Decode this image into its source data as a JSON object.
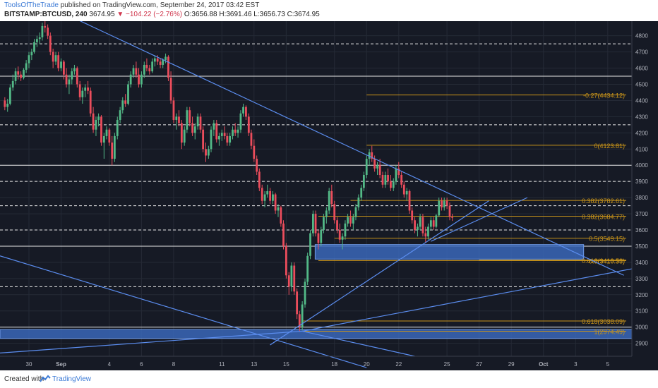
{
  "header": {
    "author": "ToolsOfTheTrade",
    "published": "published on TradingView.com, September 24, 2017 03:42 EST",
    "symbol": "BITSTAMP:BTCUSD, 240",
    "last": "3674.95",
    "change": "−104.22 (−2.76%)",
    "open": "O:3656.88",
    "high": "H:3691.46",
    "low": "L:3656.73",
    "close": "C:3674.95"
  },
  "footer": {
    "created_with": "Created with",
    "brand": "TradingView"
  },
  "colors": {
    "background": "#161a25",
    "grid": "#252a36",
    "up": "#53b987",
    "down": "#eb4d5c",
    "trendline": "#5b8def",
    "fib": "#c9941a",
    "zone": "#3a67b8",
    "axis_text": "#b2b5be",
    "white_line": "#e8e8e8"
  },
  "chart_data": {
    "type": "candlestick",
    "ylim": [
      2820,
      4890
    ],
    "x_range_days": [
      -2.8,
      36.5
    ],
    "x_ticks": [
      {
        "label": "30",
        "day": -1
      },
      {
        "label": "Sep",
        "day": 1
      },
      {
        "label": "4",
        "day": 4
      },
      {
        "label": "6",
        "day": 6
      },
      {
        "label": "8",
        "day": 8
      },
      {
        "label": "11",
        "day": 11
      },
      {
        "label": "13",
        "day": 13
      },
      {
        "label": "15",
        "day": 15
      },
      {
        "label": "18",
        "day": 18
      },
      {
        "label": "20",
        "day": 20
      },
      {
        "label": "22",
        "day": 22
      },
      {
        "label": "25",
        "day": 25
      },
      {
        "label": "27",
        "day": 27
      },
      {
        "label": "29",
        "day": 29
      },
      {
        "label": "Oct",
        "day": 31
      },
      {
        "label": "3",
        "day": 33
      },
      {
        "label": "5",
        "day": 35
      }
    ],
    "y_ticks": [
      2900,
      3000,
      3100,
      3200,
      3300,
      3400,
      3500,
      3600,
      3700,
      3800,
      3900,
      4000,
      4100,
      4200,
      4300,
      4400,
      4500,
      4600,
      4700,
      4800
    ],
    "candles": [
      [
        -2.5,
        4400,
        4420,
        4340,
        4360
      ],
      [
        -2.33,
        4360,
        4410,
        4330,
        4380
      ],
      [
        -2.17,
        4380,
        4500,
        4370,
        4480
      ],
      [
        -2,
        4480,
        4560,
        4460,
        4520
      ],
      [
        -1.83,
        4520,
        4600,
        4500,
        4580
      ],
      [
        -1.67,
        4580,
        4610,
        4530,
        4560
      ],
      [
        -1.5,
        4560,
        4580,
        4520,
        4540
      ],
      [
        -1.33,
        4540,
        4600,
        4530,
        4590
      ],
      [
        -1.17,
        4590,
        4650,
        4570,
        4630
      ],
      [
        -1,
        4630,
        4700,
        4600,
        4680
      ],
      [
        -0.83,
        4680,
        4720,
        4650,
        4700
      ],
      [
        -0.67,
        4700,
        4780,
        4690,
        4760
      ],
      [
        -0.5,
        4760,
        4800,
        4730,
        4780
      ],
      [
        -0.33,
        4780,
        4820,
        4750,
        4790
      ],
      [
        -0.17,
        4790,
        4880,
        4770,
        4860
      ],
      [
        0,
        4860,
        4890,
        4820,
        4850
      ],
      [
        0.17,
        4850,
        4870,
        4780,
        4800
      ],
      [
        0.33,
        4800,
        4820,
        4680,
        4700
      ],
      [
        0.5,
        4700,
        4720,
        4600,
        4640
      ],
      [
        0.67,
        4640,
        4700,
        4620,
        4680
      ],
      [
        0.83,
        4680,
        4700,
        4580,
        4600
      ],
      [
        1,
        4600,
        4660,
        4580,
        4640
      ],
      [
        1.17,
        4640,
        4650,
        4530,
        4560
      ],
      [
        1.33,
        4560,
        4600,
        4480,
        4500
      ],
      [
        1.5,
        4500,
        4560,
        4440,
        4530
      ],
      [
        1.67,
        4530,
        4600,
        4500,
        4580
      ],
      [
        1.83,
        4580,
        4620,
        4560,
        4600
      ],
      [
        2,
        4600,
        4610,
        4480,
        4500
      ],
      [
        2.17,
        4500,
        4520,
        4400,
        4420
      ],
      [
        2.33,
        4420,
        4480,
        4380,
        4460
      ],
      [
        2.5,
        4460,
        4500,
        4420,
        4480
      ],
      [
        2.67,
        4480,
        4520,
        4440,
        4460
      ],
      [
        2.83,
        4460,
        4480,
        4300,
        4320
      ],
      [
        3,
        4320,
        4360,
        4200,
        4220
      ],
      [
        3.17,
        4220,
        4300,
        4180,
        4280
      ],
      [
        3.33,
        4280,
        4320,
        4240,
        4300
      ],
      [
        3.5,
        4300,
        4310,
        4120,
        4140
      ],
      [
        3.67,
        4140,
        4200,
        4040,
        4180
      ],
      [
        3.83,
        4180,
        4240,
        4160,
        4220
      ],
      [
        4,
        4220,
        4230,
        4120,
        4140
      ],
      [
        4.17,
        4140,
        4180,
        4000,
        4040
      ],
      [
        4.33,
        4040,
        4200,
        4020,
        4180
      ],
      [
        4.5,
        4180,
        4300,
        4160,
        4280
      ],
      [
        4.67,
        4280,
        4360,
        4260,
        4340
      ],
      [
        4.83,
        4340,
        4420,
        4320,
        4400
      ],
      [
        5,
        4400,
        4440,
        4360,
        4380
      ],
      [
        5.17,
        4380,
        4520,
        4370,
        4500
      ],
      [
        5.33,
        4500,
        4580,
        4480,
        4560
      ],
      [
        5.5,
        4560,
        4620,
        4540,
        4600
      ],
      [
        5.67,
        4600,
        4640,
        4540,
        4560
      ],
      [
        5.83,
        4560,
        4600,
        4480,
        4500
      ],
      [
        6,
        4500,
        4580,
        4480,
        4560
      ],
      [
        6.17,
        4560,
        4640,
        4540,
        4620
      ],
      [
        6.33,
        4620,
        4660,
        4580,
        4600
      ],
      [
        6.5,
        4600,
        4620,
        4560,
        4580
      ],
      [
        6.67,
        4580,
        4660,
        4570,
        4640
      ],
      [
        6.83,
        4640,
        4680,
        4610,
        4660
      ],
      [
        7,
        4660,
        4680,
        4620,
        4640
      ],
      [
        7.17,
        4640,
        4660,
        4600,
        4620
      ],
      [
        7.33,
        4620,
        4660,
        4600,
        4650
      ],
      [
        7.5,
        4650,
        4690,
        4630,
        4670
      ],
      [
        7.67,
        4670,
        4680,
        4520,
        4540
      ],
      [
        7.83,
        4540,
        4580,
        4380,
        4400
      ],
      [
        8,
        4400,
        4420,
        4260,
        4280
      ],
      [
        8.17,
        4280,
        4320,
        4220,
        4300
      ],
      [
        8.33,
        4300,
        4340,
        4240,
        4260
      ],
      [
        8.5,
        4260,
        4280,
        4100,
        4140
      ],
      [
        8.67,
        4140,
        4240,
        4120,
        4220
      ],
      [
        8.83,
        4220,
        4360,
        4200,
        4340
      ],
      [
        9,
        4340,
        4360,
        4240,
        4260
      ],
      [
        9.17,
        4260,
        4300,
        4180,
        4200
      ],
      [
        9.33,
        4200,
        4260,
        4160,
        4240
      ],
      [
        9.5,
        4240,
        4320,
        4220,
        4300
      ],
      [
        9.67,
        4300,
        4320,
        4200,
        4220
      ],
      [
        9.83,
        4220,
        4240,
        4080,
        4100
      ],
      [
        10,
        4100,
        4140,
        4020,
        4060
      ],
      [
        10.17,
        4060,
        4120,
        4040,
        4100
      ],
      [
        10.33,
        4100,
        4240,
        4080,
        4220
      ],
      [
        10.5,
        4220,
        4280,
        4180,
        4260
      ],
      [
        10.67,
        4260,
        4280,
        4140,
        4160
      ],
      [
        10.83,
        4160,
        4200,
        4120,
        4180
      ],
      [
        11,
        4180,
        4220,
        4150,
        4200
      ],
      [
        11.17,
        4200,
        4240,
        4160,
        4180
      ],
      [
        11.33,
        4180,
        4200,
        4120,
        4140
      ],
      [
        11.5,
        4140,
        4200,
        4120,
        4180
      ],
      [
        11.67,
        4180,
        4240,
        4160,
        4220
      ],
      [
        11.83,
        4220,
        4260,
        4180,
        4200
      ],
      [
        12,
        4200,
        4240,
        4170,
        4220
      ],
      [
        12.17,
        4220,
        4340,
        4200,
        4320
      ],
      [
        12.33,
        4320,
        4380,
        4300,
        4360
      ],
      [
        12.5,
        4360,
        4370,
        4280,
        4300
      ],
      [
        12.67,
        4300,
        4320,
        4180,
        4200
      ],
      [
        12.83,
        4200,
        4220,
        4100,
        4120
      ],
      [
        13,
        4120,
        4160,
        4020,
        4040
      ],
      [
        13.17,
        4040,
        4060,
        3940,
        3960
      ],
      [
        13.33,
        3960,
        3980,
        3840,
        3860
      ],
      [
        13.5,
        3860,
        3880,
        3760,
        3780
      ],
      [
        13.67,
        3780,
        3840,
        3740,
        3820
      ],
      [
        13.83,
        3820,
        3880,
        3800,
        3840
      ],
      [
        14,
        3840,
        3860,
        3760,
        3780
      ],
      [
        14.17,
        3780,
        3840,
        3760,
        3820
      ],
      [
        14.33,
        3820,
        3830,
        3700,
        3720
      ],
      [
        14.5,
        3720,
        3760,
        3680,
        3740
      ],
      [
        14.67,
        3740,
        3750,
        3620,
        3640
      ],
      [
        14.83,
        3640,
        3660,
        3480,
        3500
      ],
      [
        15,
        3500,
        3520,
        3300,
        3320
      ],
      [
        15.17,
        3320,
        3340,
        3200,
        3250
      ],
      [
        15.33,
        3250,
        3400,
        3220,
        3380
      ],
      [
        15.5,
        3380,
        3400,
        3200,
        3220
      ],
      [
        15.67,
        3220,
        3240,
        3050,
        3080
      ],
      [
        15.83,
        3080,
        3100,
        2970,
        3000
      ],
      [
        16,
        3000,
        3160,
        2980,
        3140
      ],
      [
        16.17,
        3140,
        3300,
        3120,
        3280
      ],
      [
        16.33,
        3280,
        3460,
        3260,
        3440
      ],
      [
        16.5,
        3440,
        3600,
        3420,
        3580
      ],
      [
        16.67,
        3580,
        3720,
        3560,
        3700
      ],
      [
        16.83,
        3700,
        3720,
        3560,
        3580
      ],
      [
        17,
        3580,
        3600,
        3480,
        3520
      ],
      [
        17.17,
        3520,
        3620,
        3500,
        3600
      ],
      [
        17.33,
        3600,
        3700,
        3580,
        3680
      ],
      [
        17.5,
        3680,
        3740,
        3640,
        3720
      ],
      [
        17.67,
        3720,
        3860,
        3700,
        3840
      ],
      [
        17.83,
        3840,
        3880,
        3740,
        3760
      ],
      [
        18,
        3760,
        3780,
        3640,
        3660
      ],
      [
        18.17,
        3660,
        3680,
        3580,
        3600
      ],
      [
        18.33,
        3600,
        3640,
        3520,
        3540
      ],
      [
        18.5,
        3540,
        3580,
        3480,
        3560
      ],
      [
        18.67,
        3560,
        3660,
        3540,
        3640
      ],
      [
        18.83,
        3640,
        3700,
        3620,
        3680
      ],
      [
        19,
        3680,
        3720,
        3620,
        3640
      ],
      [
        19.17,
        3640,
        3700,
        3600,
        3680
      ],
      [
        19.33,
        3680,
        3760,
        3660,
        3740
      ],
      [
        19.5,
        3740,
        3820,
        3720,
        3800
      ],
      [
        19.67,
        3800,
        3880,
        3780,
        3860
      ],
      [
        19.83,
        3860,
        3960,
        3840,
        3940
      ],
      [
        20,
        3940,
        4060,
        3920,
        4040
      ],
      [
        20.17,
        4040,
        4100,
        4000,
        4080
      ],
      [
        20.33,
        4080,
        4120,
        4020,
        4040
      ],
      [
        20.5,
        4040,
        4060,
        3960,
        3980
      ],
      [
        20.67,
        3980,
        4020,
        3940,
        4000
      ],
      [
        20.83,
        4000,
        4040,
        3920,
        3940
      ],
      [
        21,
        3940,
        3960,
        3860,
        3880
      ],
      [
        21.17,
        3880,
        3960,
        3860,
        3940
      ],
      [
        21.33,
        3940,
        3980,
        3880,
        3900
      ],
      [
        21.5,
        3900,
        3940,
        3840,
        3860
      ],
      [
        21.67,
        3860,
        3920,
        3840,
        3900
      ],
      [
        21.83,
        3900,
        4000,
        3880,
        3980
      ],
      [
        22,
        3980,
        4020,
        3920,
        3940
      ],
      [
        22.17,
        3940,
        3960,
        3860,
        3880
      ],
      [
        22.33,
        3880,
        3900,
        3800,
        3820
      ],
      [
        22.5,
        3820,
        3860,
        3780,
        3840
      ],
      [
        22.67,
        3840,
        3850,
        3700,
        3720
      ],
      [
        22.83,
        3720,
        3740,
        3640,
        3660
      ],
      [
        23,
        3660,
        3680,
        3580,
        3600
      ],
      [
        23.17,
        3600,
        3640,
        3560,
        3620
      ],
      [
        23.33,
        3620,
        3700,
        3600,
        3680
      ],
      [
        23.5,
        3680,
        3700,
        3560,
        3580
      ],
      [
        23.67,
        3580,
        3620,
        3520,
        3560
      ],
      [
        23.83,
        3560,
        3640,
        3540,
        3620
      ],
      [
        24,
        3620,
        3680,
        3600,
        3660
      ],
      [
        24.17,
        3660,
        3680,
        3600,
        3620
      ],
      [
        24.33,
        3620,
        3700,
        3610,
        3690
      ],
      [
        24.5,
        3690,
        3800,
        3680,
        3780
      ],
      [
        24.67,
        3780,
        3800,
        3720,
        3740
      ],
      [
        24.83,
        3740,
        3800,
        3720,
        3780
      ],
      [
        25,
        3780,
        3800,
        3730,
        3750
      ],
      [
        25.17,
        3750,
        3770,
        3660,
        3680
      ],
      [
        25.33,
        3680,
        3700,
        3656,
        3675
      ]
    ],
    "horizontal_levels": [
      {
        "value": 4750,
        "style": "dashed"
      },
      {
        "value": 4550,
        "style": "solid"
      },
      {
        "value": 4250,
        "style": "dashed"
      },
      {
        "value": 4000,
        "style": "solid"
      },
      {
        "value": 3900,
        "style": "dashed"
      },
      {
        "value": 3750,
        "style": "dashed"
      },
      {
        "value": 3600,
        "style": "dashed"
      },
      {
        "value": 3500,
        "style": "solid"
      },
      {
        "value": 3250,
        "style": "dashed"
      },
      {
        "value": 3000,
        "style": "solid"
      }
    ],
    "fib_levels": [
      {
        "label": "-0.27(4434.12)",
        "value": 4434.12,
        "x_start": 20
      },
      {
        "label": "0(4123.81)",
        "value": 4123.81,
        "x_start": 20
      },
      {
        "label": "0.382(3782.61)",
        "value": 3782.61,
        "x_start": 19
      },
      {
        "label": "0.382(3684.77)",
        "value": 3684.77,
        "x_start": 17
      },
      {
        "label": "0.5(3549.15)",
        "value": 3549.15,
        "x_start": 18
      },
      {
        "label": "0.618(3413.53)",
        "value": 3413.53,
        "x_start": 27
      },
      {
        "label": "0.5(3410.35)",
        "value": 3410.35,
        "x_start": 17
      },
      {
        "label": "0.618(3038.09)",
        "value": 3038.09,
        "x_start": 16
      },
      {
        "label": "1(2974.49)",
        "value": 2974.49,
        "x_start": 16
      }
    ],
    "zones": [
      {
        "x0": 16.8,
        "x1": 33.5,
        "y0": 3420,
        "y1": 3510
      },
      {
        "x0": -2.8,
        "x1": 36.5,
        "y0": 2930,
        "y1": 2985
      }
    ],
    "trendlines": [
      {
        "p1": [
          2,
          4900
        ],
        "p2": [
          36,
          3320
        ]
      },
      {
        "p1": [
          24,
          3530
        ],
        "p2": [
          30,
          3800
        ]
      },
      {
        "p1": [
          16,
          2975
        ],
        "p2": [
          36.5,
          3360
        ]
      },
      {
        "p1": [
          14,
          2890
        ],
        "p2": [
          27.6,
          3780
        ]
      },
      {
        "p1": [
          -2.8,
          3440
        ],
        "p2": [
          20,
          2750
        ]
      },
      {
        "p1": [
          -2.8,
          2840
        ],
        "p2": [
          16,
          2975
        ]
      },
      {
        "p1": [
          16,
          2975
        ],
        "p2": [
          23,
          2820
        ]
      }
    ]
  }
}
